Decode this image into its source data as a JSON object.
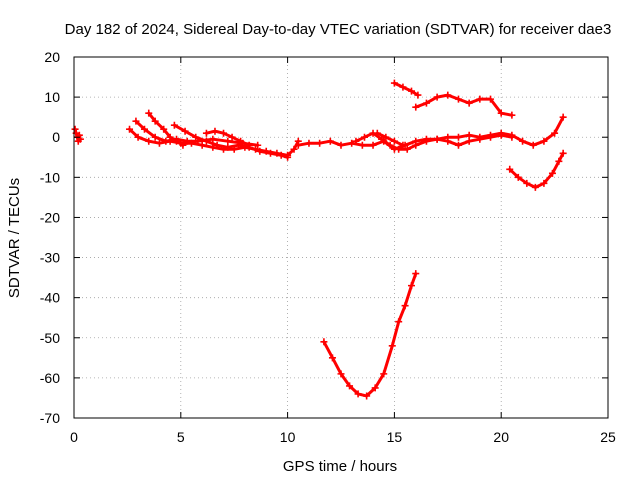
{
  "chart_data": {
    "type": "scatter",
    "title": "Day 182 of 2024, Sidereal Day-to-day VTEC variation (SDTVAR) for receiver dae3",
    "xlabel": "GPS time / hours",
    "ylabel": "SDTVAR / TECUs",
    "xlim": [
      0,
      25
    ],
    "ylim": [
      -70,
      20
    ],
    "xticks": [
      0,
      5,
      10,
      15,
      20,
      25
    ],
    "yticks": [
      20,
      10,
      0,
      -10,
      -20,
      -30,
      -40,
      -50,
      -60,
      -70
    ],
    "grid": true,
    "marker": "plus",
    "color": "#ff0000",
    "series": [
      {
        "name": "arc-1",
        "x": [
          0.05,
          0.1,
          0.15,
          0.2,
          0.25,
          0.3
        ],
        "y": [
          2,
          1,
          0,
          -1,
          0.5,
          -0.5
        ]
      },
      {
        "name": "arc-2",
        "x": [
          2.6,
          3.0,
          3.5,
          4.0,
          4.5,
          5.0,
          5.5,
          6.0,
          6.5,
          7.0,
          7.5,
          8.0,
          8.5,
          9.0,
          9.5,
          10.0,
          10.3,
          10.5
        ],
        "y": [
          2,
          0,
          -1,
          -1.5,
          -1,
          -1.5,
          -1.5,
          -2,
          -2.5,
          -3,
          -3,
          -2.5,
          -3,
          -3.5,
          -4,
          -4.5,
          -3,
          -1
        ]
      },
      {
        "name": "arc-3",
        "x": [
          2.9,
          3.3,
          3.8,
          4.3,
          4.8,
          5.3,
          5.8,
          6.5,
          7.2,
          7.9,
          8.6
        ],
        "y": [
          4,
          2,
          0,
          -1,
          -0.5,
          -1,
          -1,
          -0.5,
          -1,
          -1.5,
          -2
        ]
      },
      {
        "name": "arc-4",
        "x": [
          3.5,
          3.8,
          4.2,
          4.5,
          4.8,
          5.1
        ],
        "y": [
          6,
          4,
          2,
          0,
          -1,
          -2
        ]
      },
      {
        "name": "arc-5",
        "x": [
          4.7,
          5.2,
          5.7,
          6.2,
          6.7,
          7.2,
          7.7,
          8.2,
          8.7,
          9.2,
          9.7,
          10.0
        ],
        "y": [
          3,
          1.5,
          0,
          -1,
          -2,
          -2.5,
          -2,
          -2.5,
          -3.5,
          -4,
          -4.5,
          -5
        ]
      },
      {
        "name": "arc-6",
        "x": [
          6.2,
          6.6,
          7.0,
          7.4,
          7.8,
          8.2
        ],
        "y": [
          1,
          1.5,
          1,
          0,
          -1,
          -2
        ]
      },
      {
        "name": "arc-7",
        "x": [
          10.5,
          11.0,
          11.5,
          12.0,
          12.5,
          13.0,
          13.5,
          14.0,
          14.5,
          15.0,
          15.5,
          16.0,
          16.5,
          17.0,
          17.5,
          18.0,
          18.5,
          19.0,
          19.5,
          20.0,
          20.5,
          21.0,
          21.5,
          22.0,
          22.5,
          22.9
        ],
        "y": [
          -2,
          -1.5,
          -1.5,
          -1,
          -2,
          -1.5,
          -2,
          -2,
          -1,
          -3,
          -2,
          -1,
          -0.5,
          -0.5,
          0,
          0,
          0.5,
          0,
          0.5,
          1,
          0.5,
          -1,
          -2,
          -1,
          1,
          5
        ]
      },
      {
        "name": "arc-8",
        "x": [
          13.2,
          13.6,
          14.0,
          14.4,
          14.8,
          15.2,
          15.6,
          16.0,
          16.5,
          17.0,
          17.5,
          18.0,
          18.5,
          19.0,
          19.5,
          20.0,
          20.5
        ],
        "y": [
          -1,
          0,
          1,
          -0.5,
          -2,
          -3,
          -3,
          -2,
          -1,
          -0.5,
          -1,
          -2,
          -1,
          -0.5,
          0,
          0.5,
          0
        ]
      },
      {
        "name": "arc-9",
        "x": [
          14.2,
          14.6,
          15.0,
          15.4
        ],
        "y": [
          1,
          0,
          -1,
          -2
        ]
      },
      {
        "name": "arc-10",
        "x": [
          15.0,
          15.4,
          15.8,
          16.1
        ],
        "y": [
          13.5,
          12.5,
          11.5,
          10.5
        ]
      },
      {
        "name": "arc-11",
        "x": [
          16.0,
          16.5,
          17.0,
          17.5,
          18.0,
          18.5,
          19.0,
          19.5,
          20.0,
          20.5
        ],
        "y": [
          7.5,
          8.5,
          10,
          10.5,
          9.5,
          8.5,
          9.5,
          9.5,
          6,
          5.5
        ]
      },
      {
        "name": "arc-12",
        "x": [
          20.4,
          20.8,
          21.2,
          21.6,
          22.0,
          22.4,
          22.7,
          22.9
        ],
        "y": [
          -8,
          -10,
          -11.5,
          -12.5,
          -11.5,
          -9,
          -6,
          -4
        ]
      },
      {
        "name": "arc-13",
        "x": [
          11.7,
          12.1,
          12.5,
          12.9,
          13.3,
          13.7,
          14.1,
          14.5,
          14.9,
          15.2,
          15.5,
          15.8,
          16.0
        ],
        "y": [
          -51,
          -55,
          -59,
          -62,
          -64,
          -64.5,
          -62.5,
          -59,
          -52,
          -46,
          -42,
          -37,
          -34
        ]
      }
    ]
  }
}
